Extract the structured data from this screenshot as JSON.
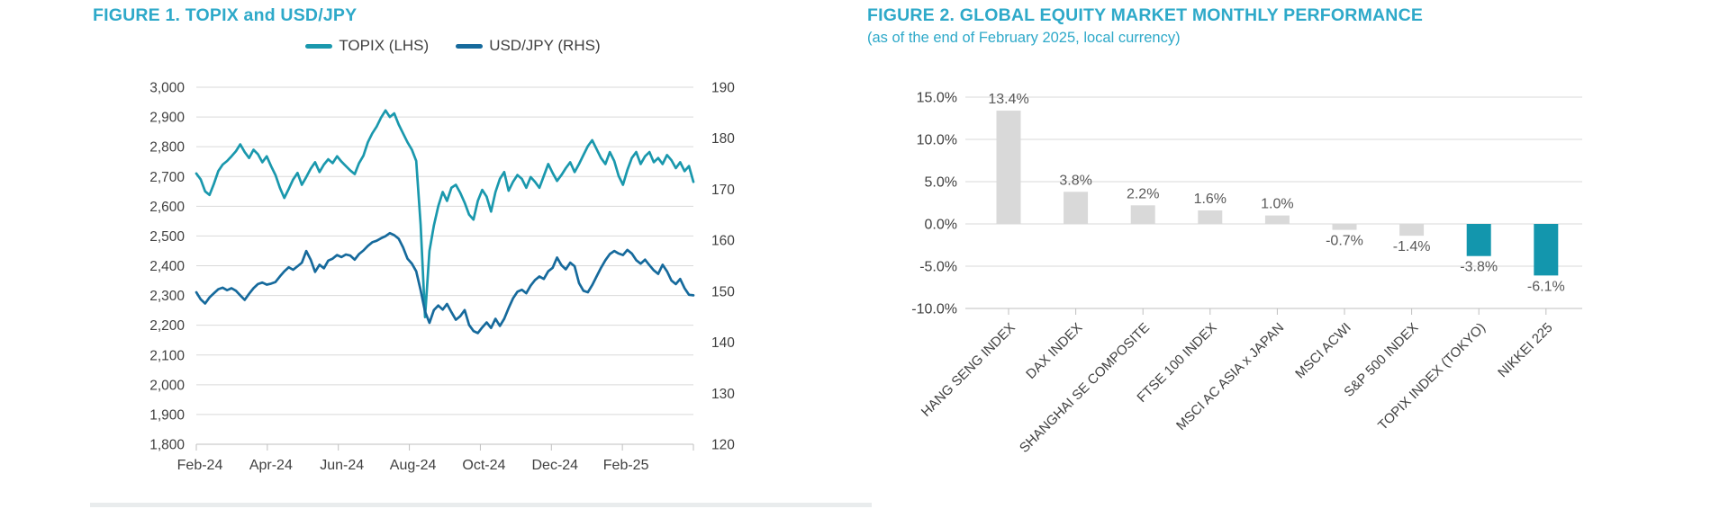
{
  "colors": {
    "title_teal": "#2ea9c9",
    "axis_text": "#404040",
    "data_label": "#595959",
    "grid": "#d9d9d9",
    "axis_line": "#bfbfbf",
    "bar_gray": "#d9d9d9",
    "bar_teal": "#1396ad",
    "topix_line": "#1a98ad",
    "usdjpy_line": "#166a9c"
  },
  "chart_data": [
    {
      "type": "line",
      "title": "FIGURE 1. TOPIX and USD/JPY",
      "legend_position": "top",
      "grid": true,
      "x_tick_labels": [
        "Feb-24",
        "Apr-24",
        "Jun-24",
        "Aug-24",
        "Oct-24",
        "Dec-24",
        "Feb-25"
      ],
      "left_axis": {
        "min": 1800,
        "max": 3000,
        "step": 100,
        "label_values": [
          "3,000",
          "2,900",
          "2,800",
          "2,700",
          "2,600",
          "2,500",
          "2,400",
          "2,300",
          "2,200",
          "2,100",
          "2,000",
          "1,900",
          "1,800"
        ]
      },
      "right_axis": {
        "min": 120,
        "max": 190,
        "step": 10,
        "label_values": [
          "190",
          "180",
          "170",
          "160",
          "150",
          "140",
          "130",
          "120"
        ]
      },
      "series": [
        {
          "name": "TOPIX (LHS)",
          "axis": "left",
          "color": "#1a98ad",
          "values": [
            2710,
            2690,
            2650,
            2638,
            2675,
            2718,
            2740,
            2752,
            2768,
            2785,
            2808,
            2782,
            2762,
            2790,
            2775,
            2748,
            2768,
            2735,
            2705,
            2662,
            2628,
            2658,
            2690,
            2712,
            2672,
            2698,
            2726,
            2748,
            2715,
            2740,
            2758,
            2745,
            2768,
            2750,
            2735,
            2720,
            2708,
            2745,
            2770,
            2815,
            2845,
            2868,
            2898,
            2922,
            2900,
            2912,
            2875,
            2845,
            2815,
            2790,
            2752,
            2538,
            2227,
            2450,
            2535,
            2600,
            2648,
            2618,
            2662,
            2672,
            2645,
            2612,
            2572,
            2555,
            2618,
            2655,
            2632,
            2582,
            2648,
            2692,
            2715,
            2652,
            2682,
            2705,
            2692,
            2662,
            2698,
            2682,
            2662,
            2702,
            2742,
            2712,
            2685,
            2705,
            2728,
            2748,
            2715,
            2742,
            2772,
            2802,
            2822,
            2792,
            2762,
            2742,
            2782,
            2752,
            2702,
            2672,
            2722,
            2762,
            2782,
            2742,
            2768,
            2782,
            2748,
            2762,
            2742,
            2772,
            2755,
            2728,
            2748,
            2718,
            2735,
            2682
          ]
        },
        {
          "name": "USD/JPY (RHS)",
          "axis": "right",
          "color": "#166a9c",
          "values": [
            149.8,
            148.4,
            147.6,
            148.8,
            149.6,
            150.4,
            150.7,
            150.2,
            150.6,
            150.1,
            149.2,
            148.3,
            149.5,
            150.6,
            151.4,
            151.7,
            151.3,
            151.5,
            151.8,
            152.9,
            153.9,
            154.7,
            154.2,
            154.9,
            155.6,
            157.9,
            156.2,
            153.8,
            155.2,
            154.5,
            156.0,
            156.4,
            157.1,
            156.7,
            157.2,
            157.0,
            156.2,
            157.3,
            158.0,
            158.9,
            159.6,
            159.9,
            160.4,
            160.8,
            161.4,
            161.0,
            160.3,
            158.6,
            156.4,
            155.4,
            153.9,
            150.2,
            146.0,
            143.8,
            146.3,
            147.2,
            146.4,
            147.5,
            145.9,
            144.4,
            145.1,
            146.3,
            143.4,
            142.2,
            141.8,
            142.9,
            143.9,
            142.8,
            144.6,
            143.2,
            144.6,
            146.7,
            148.6,
            149.9,
            150.3,
            149.6,
            151.1,
            152.2,
            152.9,
            152.4,
            153.9,
            154.6,
            156.6,
            155.1,
            154.3,
            155.6,
            154.9,
            151.6,
            150.1,
            149.8,
            151.2,
            152.9,
            154.6,
            156.1,
            157.3,
            157.9,
            157.4,
            157.1,
            158.1,
            157.4,
            156.1,
            155.4,
            156.2,
            155.1,
            154.1,
            153.4,
            155.2,
            153.9,
            152.1,
            151.4,
            152.4,
            150.6,
            149.3,
            149.2
          ]
        }
      ]
    },
    {
      "type": "bar",
      "title": "FIGURE 2. GLOBAL EQUITY MARKET MONTHLY PERFORMANCE",
      "subtitle": "(as of the end of February 2025, local currency)",
      "categories": [
        "HANG SENG INDEX",
        "DAX INDEX",
        "SHANGHAI SE COMPOSITE",
        "FTSE 100 INDEX",
        "MSCI AC ASIA x JAPAN",
        "MSCI ACWI",
        "S&P 500 INDEX",
        "TOPIX INDEX (TOKYO)",
        "NIKKEI 225"
      ],
      "values": [
        13.4,
        3.8,
        2.2,
        1.6,
        1.0,
        -0.7,
        -1.4,
        -3.8,
        -6.1
      ],
      "value_labels": [
        "13.4%",
        "3.8%",
        "2.2%",
        "1.6%",
        "1.0%",
        "-0.7%",
        "-1.4%",
        "-3.8%",
        "-6.1%"
      ],
      "bar_colors": [
        "#d9d9d9",
        "#d9d9d9",
        "#d9d9d9",
        "#d9d9d9",
        "#d9d9d9",
        "#d9d9d9",
        "#d9d9d9",
        "#1396ad",
        "#1396ad"
      ],
      "ylim": [
        -10,
        15
      ],
      "y_ticks": [
        15,
        10,
        5,
        0,
        -5,
        -10
      ],
      "y_tick_labels": [
        "15.0%",
        "10.0%",
        "5.0%",
        "0.0%",
        "-5.0%",
        "-10.0%"
      ],
      "grid": true
    }
  ]
}
